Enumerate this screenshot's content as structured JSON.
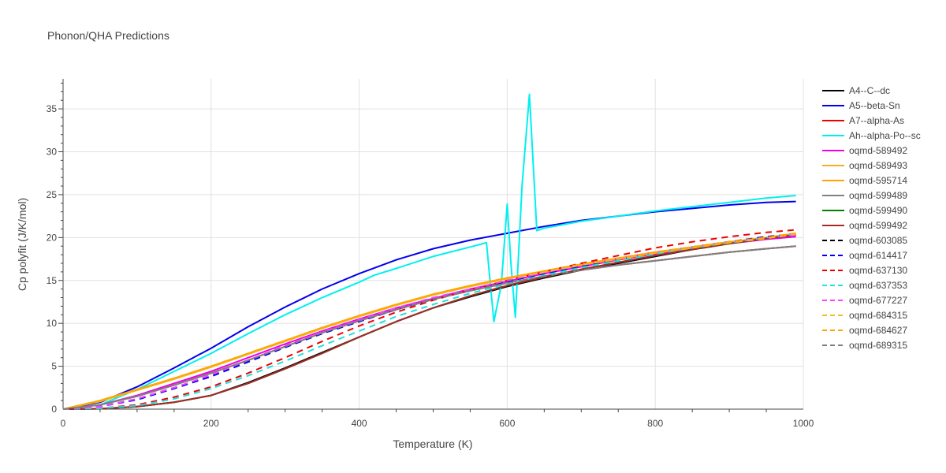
{
  "chart_data": {
    "type": "line",
    "title": "Phonon/QHA Predictions",
    "xlabel": "Temperature (K)",
    "ylabel": "Cp polyfit (J/K/mol)",
    "xlim": [
      0,
      1000
    ],
    "ylim": [
      0,
      38.5
    ],
    "xticks": [
      0,
      200,
      400,
      600,
      800,
      1000
    ],
    "yticks": [
      0,
      5,
      10,
      15,
      20,
      25,
      30,
      35
    ],
    "grid": true,
    "legend_position": "right",
    "x": [
      0,
      50,
      100,
      150,
      200,
      250,
      300,
      350,
      400,
      450,
      500,
      550,
      600,
      650,
      700,
      750,
      800,
      850,
      900,
      950,
      990
    ],
    "series": [
      {
        "name": "A4--C--dc",
        "color": "#000000",
        "dash": "solid",
        "values": [
          0,
          0.05,
          0.3,
          0.8,
          1.6,
          3.1,
          4.8,
          6.6,
          8.4,
          10.2,
          11.8,
          13.1,
          14.3,
          15.3,
          16.2,
          17.0,
          17.8,
          18.6,
          19.3,
          19.9,
          20.3
        ]
      },
      {
        "name": "A5--beta-Sn",
        "color": "#0000ee",
        "dash": "solid",
        "values": [
          0,
          0.8,
          2.6,
          4.8,
          7.1,
          9.6,
          11.9,
          14.0,
          15.8,
          17.4,
          18.7,
          19.7,
          20.5,
          21.3,
          22.0,
          22.5,
          23.0,
          23.4,
          23.8,
          24.1,
          24.2
        ]
      },
      {
        "name": "A7--alpha-As",
        "color": "#ee0000",
        "dash": "solid",
        "values": [
          0,
          0.5,
          1.5,
          2.8,
          4.2,
          5.7,
          7.3,
          8.9,
          10.3,
          11.6,
          12.8,
          13.8,
          14.7,
          15.5,
          16.2,
          16.8,
          17.3,
          17.8,
          18.3,
          18.7,
          19.0
        ]
      },
      {
        "name": "Ah--alpha-Po--sc",
        "color": "#00f0f0",
        "dash": "solid",
        "x": [
          0,
          50,
          100,
          150,
          200,
          250,
          300,
          350,
          400,
          420,
          450,
          500,
          550,
          572,
          582,
          592,
          600,
          605,
          611,
          620,
          630,
          640,
          650,
          700,
          750,
          800,
          850,
          900,
          950,
          990
        ],
        "values": [
          0,
          0.5,
          2.3,
          4.4,
          6.5,
          8.8,
          11.0,
          13.0,
          14.8,
          15.6,
          16.4,
          17.8,
          18.9,
          19.4,
          10.2,
          14.5,
          23.9,
          17.0,
          10.7,
          26.0,
          36.7,
          20.8,
          21.1,
          21.9,
          22.5,
          23.1,
          23.6,
          24.1,
          24.6,
          24.9
        ]
      },
      {
        "name": "oqmd-589492",
        "color": "#ee00ee",
        "dash": "solid",
        "values": [
          0,
          0.5,
          1.6,
          3.0,
          4.4,
          6.0,
          7.6,
          9.1,
          10.5,
          11.8,
          12.9,
          14.0,
          14.9,
          15.8,
          16.6,
          17.4,
          18.1,
          18.7,
          19.3,
          19.8,
          20.1
        ]
      },
      {
        "name": "oqmd-589493",
        "color": "#f0b020",
        "dash": "solid",
        "values": [
          0,
          0.9,
          2.2,
          3.5,
          4.9,
          6.4,
          7.9,
          9.4,
          10.8,
          12.1,
          13.3,
          14.3,
          15.2,
          16.0,
          16.8,
          17.5,
          18.2,
          18.8,
          19.4,
          19.9,
          20.4
        ]
      },
      {
        "name": "oqmd-595714",
        "color": "#ffa500",
        "dash": "solid",
        "values": [
          0,
          1.0,
          2.3,
          3.6,
          5.0,
          6.5,
          8.0,
          9.5,
          10.9,
          12.2,
          13.4,
          14.4,
          15.3,
          16.1,
          16.9,
          17.6,
          18.3,
          18.9,
          19.5,
          20.0,
          20.5
        ]
      },
      {
        "name": "oqmd-599489",
        "color": "#808080",
        "dash": "solid",
        "values": [
          0,
          0.5,
          1.5,
          2.8,
          4.2,
          5.7,
          7.3,
          8.9,
          10.3,
          11.6,
          12.8,
          13.8,
          14.7,
          15.5,
          16.2,
          16.8,
          17.3,
          17.8,
          18.3,
          18.7,
          19.0
        ]
      },
      {
        "name": "oqmd-599490",
        "color": "#008000",
        "dash": "solid",
        "values": [
          0,
          0.05,
          0.3,
          0.8,
          1.6,
          3.0,
          4.7,
          6.5,
          8.4,
          10.2,
          11.8,
          13.2,
          14.4,
          15.4,
          16.3,
          17.1,
          17.9,
          18.6,
          19.3,
          19.9,
          20.3
        ]
      },
      {
        "name": "oqmd-599492",
        "color": "#a52a2a",
        "dash": "solid",
        "values": [
          0,
          0.05,
          0.3,
          0.8,
          1.6,
          3.0,
          4.7,
          6.5,
          8.4,
          10.2,
          11.8,
          13.2,
          14.4,
          15.4,
          16.3,
          17.1,
          17.9,
          18.6,
          19.3,
          19.9,
          20.3
        ]
      },
      {
        "name": "oqmd-603085",
        "color": "#000000",
        "dash": "dash",
        "values": [
          0,
          0.3,
          1.2,
          2.5,
          3.9,
          5.6,
          7.3,
          8.9,
          10.3,
          11.7,
          12.9,
          13.9,
          14.9,
          15.8,
          16.7,
          17.5,
          18.2,
          18.9,
          19.5,
          20.1,
          20.4
        ]
      },
      {
        "name": "oqmd-614417",
        "color": "#0000ff",
        "dash": "dash",
        "values": [
          0,
          0.3,
          1.1,
          2.4,
          3.8,
          5.5,
          7.2,
          8.8,
          10.2,
          11.6,
          12.8,
          13.9,
          14.9,
          15.8,
          16.7,
          17.5,
          18.2,
          18.9,
          19.5,
          20.1,
          20.4
        ]
      },
      {
        "name": "oqmd-637130",
        "color": "#ee0000",
        "dash": "dash",
        "values": [
          0,
          0.1,
          0.5,
          1.4,
          2.6,
          4.2,
          6.0,
          7.9,
          9.7,
          11.3,
          12.7,
          13.9,
          15.0,
          16.0,
          17.0,
          17.9,
          18.8,
          19.5,
          20.1,
          20.6,
          20.9
        ]
      },
      {
        "name": "oqmd-637353",
        "color": "#20e0e0",
        "dash": "dash",
        "values": [
          0,
          0.1,
          0.4,
          1.2,
          2.4,
          3.9,
          5.6,
          7.4,
          9.1,
          10.8,
          12.2,
          13.5,
          14.6,
          15.6,
          16.5,
          17.3,
          18.1,
          18.8,
          19.4,
          20.0,
          20.4
        ]
      },
      {
        "name": "oqmd-677227",
        "color": "#ff40ff",
        "dash": "dash",
        "values": [
          0,
          0.3,
          1.2,
          2.5,
          4.0,
          5.7,
          7.4,
          9.0,
          10.4,
          11.8,
          13.0,
          14.0,
          15.0,
          15.9,
          16.8,
          17.6,
          18.3,
          18.9,
          19.5,
          20.0,
          20.3
        ]
      },
      {
        "name": "oqmd-684315",
        "color": "#f0c020",
        "dash": "dash",
        "values": [
          0,
          0.9,
          2.2,
          3.5,
          4.9,
          6.4,
          7.9,
          9.4,
          10.8,
          12.1,
          13.3,
          14.3,
          15.2,
          16.0,
          16.8,
          17.5,
          18.2,
          18.8,
          19.4,
          19.9,
          20.4
        ]
      },
      {
        "name": "oqmd-684627",
        "color": "#ffa500",
        "dash": "dash",
        "values": [
          0,
          1.0,
          2.3,
          3.6,
          5.0,
          6.5,
          8.0,
          9.5,
          10.9,
          12.2,
          13.4,
          14.4,
          15.3,
          16.1,
          16.9,
          17.6,
          18.3,
          18.9,
          19.5,
          20.0,
          20.5
        ]
      },
      {
        "name": "oqmd-689315",
        "color": "#808080",
        "dash": "dash",
        "values": [
          0,
          0.5,
          1.5,
          2.8,
          4.2,
          5.7,
          7.3,
          8.9,
          10.3,
          11.6,
          12.8,
          13.8,
          14.7,
          15.5,
          16.2,
          16.8,
          17.3,
          17.8,
          18.3,
          18.7,
          19.0
        ]
      }
    ]
  }
}
